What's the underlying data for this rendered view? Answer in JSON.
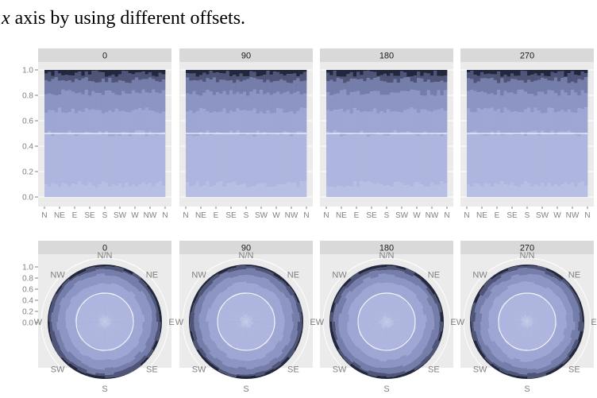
{
  "caption": {
    "var": "x",
    "rest": " axis by using different offsets."
  },
  "chart_data": [
    {
      "type": "bar",
      "layout": "stacked, faceted",
      "facets": [
        "0",
        "90",
        "180",
        "270"
      ],
      "categories": [
        "N",
        "NE",
        "E",
        "SE",
        "S",
        "SW",
        "W",
        "NW",
        "N"
      ],
      "ylim": [
        0,
        1
      ],
      "yticks": [
        "0.0",
        "0.2",
        "0.4",
        "0.6",
        "0.8",
        "1.0"
      ],
      "reference_line": 0.5,
      "grid": true,
      "series_cumulative": [
        0.1,
        0.5,
        0.68,
        0.82,
        0.92,
        0.97,
        1.0
      ],
      "colors": [
        "#b8bfe4",
        "#aeb6df",
        "#9ea7d3",
        "#8c95c3",
        "#757daa",
        "#4f5578",
        "#23273e"
      ]
    },
    {
      "type": "pie",
      "layout": "polar stacked (coord_polar), faceted",
      "facets": [
        "0",
        "90",
        "180",
        "270"
      ],
      "direction_labels": [
        "N/N",
        "NE",
        "E",
        "SE",
        "S",
        "SW",
        "W",
        "NW"
      ],
      "rticks": [
        "0.0",
        "0.2",
        "0.4",
        "0.6",
        "0.8",
        "1.0"
      ],
      "ylim": [
        0,
        1
      ],
      "reference_line": 0.5,
      "grid": true
    }
  ]
}
